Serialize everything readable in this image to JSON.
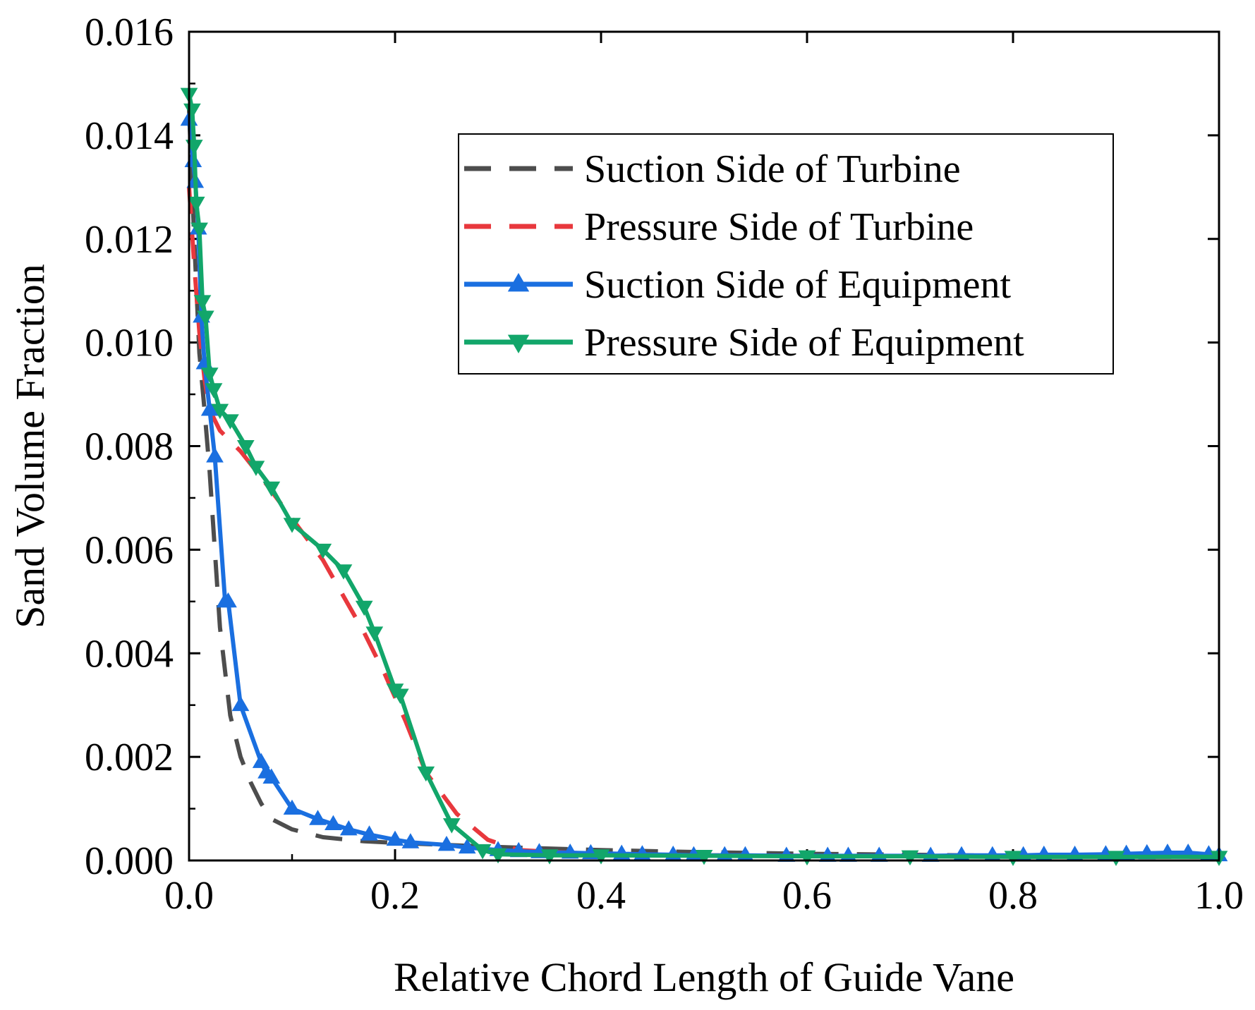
{
  "chart_data": {
    "type": "line",
    "xlabel": "Relative Chord Length of Guide Vane",
    "ylabel": "Sand Volume Fraction",
    "xlim": [
      0.0,
      1.0
    ],
    "ylim": [
      0.0,
      0.016
    ],
    "x_ticks": [
      0.0,
      0.2,
      0.4,
      0.6,
      0.8,
      1.0
    ],
    "x_tick_labels": [
      "0.0",
      "0.2",
      "0.4",
      "0.6",
      "0.8",
      "1.0"
    ],
    "y_ticks": [
      0.0,
      0.002,
      0.004,
      0.006,
      0.008,
      0.01,
      0.012,
      0.014,
      0.016
    ],
    "y_tick_labels": [
      "0.000",
      "0.002",
      "0.004",
      "0.006",
      "0.008",
      "0.010",
      "0.012",
      "0.014",
      "0.016"
    ],
    "legend_position": "top-right",
    "series": [
      {
        "name": "Suction Side of Turbine",
        "color": "#4d4d4d",
        "style": "dashed",
        "marker": "none",
        "points": [
          [
            0.0,
            0.0145
          ],
          [
            0.005,
            0.012
          ],
          [
            0.01,
            0.0098
          ],
          [
            0.015,
            0.0087
          ],
          [
            0.02,
            0.0075
          ],
          [
            0.025,
            0.006
          ],
          [
            0.03,
            0.0045
          ],
          [
            0.04,
            0.0028
          ],
          [
            0.05,
            0.002
          ],
          [
            0.06,
            0.0015
          ],
          [
            0.07,
            0.0011
          ],
          [
            0.08,
            0.0008
          ],
          [
            0.1,
            0.0006
          ],
          [
            0.13,
            0.00045
          ],
          [
            0.17,
            0.00037
          ],
          [
            0.2,
            0.00034
          ],
          [
            0.25,
            0.0003
          ],
          [
            0.3,
            0.00026
          ],
          [
            0.4,
            0.0002
          ],
          [
            0.5,
            0.00016
          ],
          [
            0.6,
            0.00013
          ],
          [
            0.7,
            0.00011
          ],
          [
            0.8,
            9e-05
          ],
          [
            0.9,
            8e-05
          ],
          [
            1.0,
            7e-05
          ]
        ]
      },
      {
        "name": "Pressure Side of Turbine",
        "color": "#e8383d",
        "style": "dashed",
        "marker": "none",
        "points": [
          [
            0.0,
            0.013
          ],
          [
            0.005,
            0.0115
          ],
          [
            0.01,
            0.0102
          ],
          [
            0.015,
            0.0093
          ],
          [
            0.02,
            0.0087
          ],
          [
            0.03,
            0.0083
          ],
          [
            0.05,
            0.0079
          ],
          [
            0.07,
            0.0074
          ],
          [
            0.1,
            0.0066
          ],
          [
            0.13,
            0.0058
          ],
          [
            0.15,
            0.0051
          ],
          [
            0.17,
            0.0044
          ],
          [
            0.19,
            0.0036
          ],
          [
            0.21,
            0.0027
          ],
          [
            0.23,
            0.0017
          ],
          [
            0.26,
            0.0009
          ],
          [
            0.29,
            0.0004
          ],
          [
            0.32,
            0.0002
          ],
          [
            0.4,
            0.00012
          ],
          [
            0.5,
            0.0001
          ],
          [
            0.6,
            9e-05
          ],
          [
            0.7,
            8e-05
          ],
          [
            0.8,
            8e-05
          ],
          [
            0.9,
            7e-05
          ],
          [
            1.0,
            7e-05
          ]
        ]
      },
      {
        "name": "Suction Side of Equipment",
        "color": "#1a6fe0",
        "style": "solid",
        "marker": "triangle-up",
        "points": [
          [
            0.0,
            0.0143
          ],
          [
            0.004,
            0.0135
          ],
          [
            0.006,
            0.0131
          ],
          [
            0.009,
            0.0122
          ],
          [
            0.012,
            0.0105
          ],
          [
            0.015,
            0.0096
          ],
          [
            0.02,
            0.0087
          ],
          [
            0.025,
            0.0078
          ],
          [
            0.035,
            0.005
          ],
          [
            0.038,
            0.005
          ],
          [
            0.05,
            0.003
          ],
          [
            0.07,
            0.0019
          ],
          [
            0.075,
            0.0017
          ],
          [
            0.08,
            0.0016
          ],
          [
            0.1,
            0.001
          ],
          [
            0.125,
            0.0008
          ],
          [
            0.14,
            0.0007
          ],
          [
            0.155,
            0.0006
          ],
          [
            0.175,
            0.0005
          ],
          [
            0.2,
            0.0004
          ],
          [
            0.215,
            0.00035
          ],
          [
            0.25,
            0.0003
          ],
          [
            0.27,
            0.00025
          ],
          [
            0.3,
            0.0002
          ],
          [
            0.32,
            0.00018
          ],
          [
            0.34,
            0.00016
          ],
          [
            0.37,
            0.00015
          ],
          [
            0.39,
            0.00014
          ],
          [
            0.42,
            0.00013
          ],
          [
            0.44,
            0.00012
          ],
          [
            0.47,
            0.00011
          ],
          [
            0.49,
            0.0001
          ],
          [
            0.52,
            0.0001
          ],
          [
            0.54,
            0.0001
          ],
          [
            0.58,
            9e-05
          ],
          [
            0.62,
            9e-05
          ],
          [
            0.64,
            9e-05
          ],
          [
            0.67,
            9e-05
          ],
          [
            0.72,
            9e-05
          ],
          [
            0.75,
            0.0001
          ],
          [
            0.78,
            0.0001
          ],
          [
            0.81,
            0.0001
          ],
          [
            0.83,
            0.00011
          ],
          [
            0.86,
            0.00011
          ],
          [
            0.89,
            0.00012
          ],
          [
            0.91,
            0.00013
          ],
          [
            0.93,
            0.00014
          ],
          [
            0.95,
            0.00015
          ],
          [
            0.97,
            0.00015
          ],
          [
            0.99,
            0.00012
          ],
          [
            1.0,
            0.0001
          ]
        ]
      },
      {
        "name": "Pressure Side of Equipment",
        "color": "#12a66a",
        "style": "solid",
        "marker": "triangle-down",
        "points": [
          [
            0.0,
            0.0148
          ],
          [
            0.003,
            0.0145
          ],
          [
            0.005,
            0.0138
          ],
          [
            0.007,
            0.0127
          ],
          [
            0.01,
            0.0122
          ],
          [
            0.013,
            0.0108
          ],
          [
            0.016,
            0.0105
          ],
          [
            0.02,
            0.0094
          ],
          [
            0.024,
            0.0091
          ],
          [
            0.03,
            0.0087
          ],
          [
            0.04,
            0.0085
          ],
          [
            0.055,
            0.008
          ],
          [
            0.065,
            0.0076
          ],
          [
            0.08,
            0.0072
          ],
          [
            0.1,
            0.0065
          ],
          [
            0.13,
            0.006
          ],
          [
            0.15,
            0.0056
          ],
          [
            0.17,
            0.0049
          ],
          [
            0.18,
            0.0044
          ],
          [
            0.2,
            0.0033
          ],
          [
            0.205,
            0.0032
          ],
          [
            0.23,
            0.0017
          ],
          [
            0.255,
            0.0007
          ],
          [
            0.285,
            0.0002
          ],
          [
            0.3,
            0.00012
          ],
          [
            0.35,
            0.0001
          ],
          [
            0.4,
            0.0001
          ],
          [
            0.5,
            9e-05
          ],
          [
            0.6,
            8e-05
          ],
          [
            0.7,
            8e-05
          ],
          [
            0.8,
            7e-05
          ],
          [
            0.9,
            7e-05
          ],
          [
            1.0,
            7e-05
          ]
        ]
      }
    ]
  }
}
